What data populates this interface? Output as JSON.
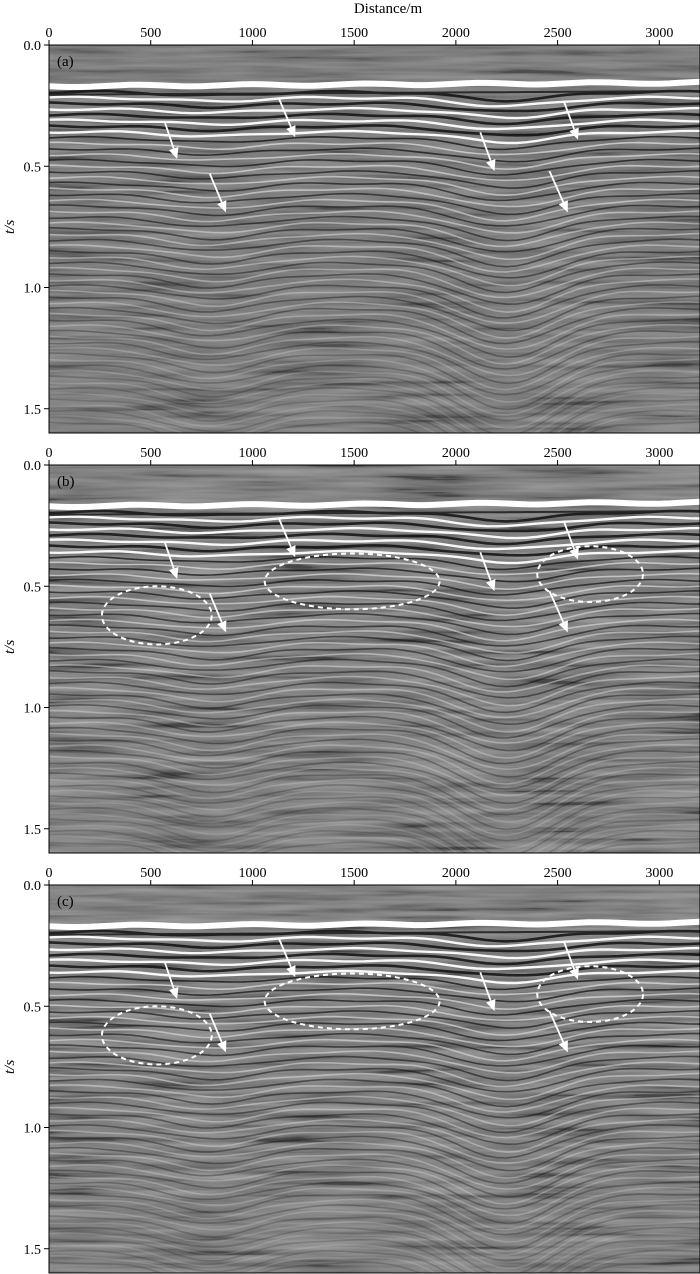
{
  "chart_data": {
    "type": "seismic-section",
    "xlabel": "Distance/m",
    "ylabel": "t/s",
    "xlim": [
      0,
      3200
    ],
    "ylim": [
      0.0,
      1.6
    ],
    "xticks": [
      0,
      500,
      1000,
      1500,
      2000,
      2500,
      3000
    ],
    "yticks": [
      0.0,
      0.5,
      1.0,
      1.5
    ],
    "x_tick_labels": [
      "0",
      "500",
      "1000",
      "1500",
      "2000",
      "2500",
      "3000"
    ],
    "y_tick_labels": [
      "0.0",
      "0.5",
      "1.0",
      "1.5"
    ],
    "grid": false,
    "colors": {
      "background": "#6a6a6a",
      "strong_reflector": "#ffffff",
      "trough": "#111111",
      "annotation": "#ffffff"
    },
    "panels": [
      {
        "label": "(a)",
        "arrows": [
          {
            "tail": [
              1130,
              0.22
            ],
            "head": [
              1210,
              0.38
            ]
          },
          {
            "tail": [
              2530,
              0.23
            ],
            "head": [
              2600,
              0.39
            ]
          },
          {
            "tail": [
              570,
              0.32
            ],
            "head": [
              630,
              0.47
            ]
          },
          {
            "tail": [
              2120,
              0.36
            ],
            "head": [
              2190,
              0.52
            ]
          },
          {
            "tail": [
              790,
              0.53
            ],
            "head": [
              870,
              0.69
            ]
          },
          {
            "tail": [
              2460,
              0.52
            ],
            "head": [
              2550,
              0.69
            ]
          }
        ],
        "ellipses": []
      },
      {
        "label": "(b)",
        "arrows": [
          {
            "tail": [
              1130,
              0.22
            ],
            "head": [
              1210,
              0.38
            ]
          },
          {
            "tail": [
              2530,
              0.23
            ],
            "head": [
              2600,
              0.39
            ]
          },
          {
            "tail": [
              570,
              0.32
            ],
            "head": [
              630,
              0.47
            ]
          },
          {
            "tail": [
              2120,
              0.36
            ],
            "head": [
              2190,
              0.52
            ]
          },
          {
            "tail": [
              790,
              0.53
            ],
            "head": [
              870,
              0.69
            ]
          },
          {
            "tail": [
              2460,
              0.52
            ],
            "head": [
              2550,
              0.69
            ]
          }
        ],
        "ellipses": [
          {
            "cx": 530,
            "cy": 0.62,
            "rx": 270,
            "ry": 0.12
          },
          {
            "cx": 1490,
            "cy": 0.48,
            "rx": 430,
            "ry": 0.115
          },
          {
            "cx": 2660,
            "cy": 0.45,
            "rx": 260,
            "ry": 0.115
          }
        ]
      },
      {
        "label": "(c)",
        "arrows": [
          {
            "tail": [
              1130,
              0.22
            ],
            "head": [
              1210,
              0.38
            ]
          },
          {
            "tail": [
              2530,
              0.23
            ],
            "head": [
              2600,
              0.39
            ]
          },
          {
            "tail": [
              570,
              0.32
            ],
            "head": [
              630,
              0.47
            ]
          },
          {
            "tail": [
              2120,
              0.36
            ],
            "head": [
              2190,
              0.52
            ]
          },
          {
            "tail": [
              790,
              0.53
            ],
            "head": [
              870,
              0.69
            ]
          },
          {
            "tail": [
              2460,
              0.52
            ],
            "head": [
              2550,
              0.69
            ]
          }
        ],
        "ellipses": [
          {
            "cx": 530,
            "cy": 0.62,
            "rx": 270,
            "ry": 0.12
          },
          {
            "cx": 1490,
            "cy": 0.48,
            "rx": 430,
            "ry": 0.115
          },
          {
            "cx": 2660,
            "cy": 0.45,
            "rx": 260,
            "ry": 0.115
          }
        ]
      }
    ]
  }
}
